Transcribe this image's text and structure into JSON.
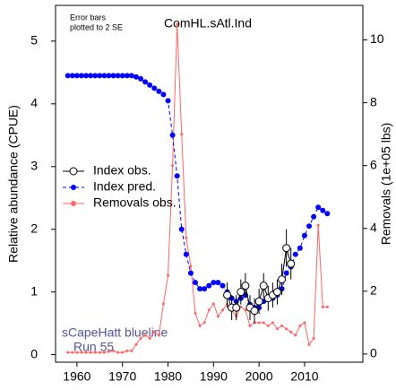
{
  "chart_data": {
    "type": "line",
    "title": "ComHL.sAtl.Ind",
    "note": [
      "Error bars",
      "plotted to 2 SE"
    ],
    "annotation": [
      "sCapeHatt blueline",
      "Run 55"
    ],
    "ylabel": "Relative abundance (CPUE)",
    "y2label": "Removals (1e+05 lbs)",
    "xlim": [
      1955.3,
      2022.8
    ],
    "xticks": [
      1960,
      1970,
      1980,
      1990,
      2000,
      2010
    ],
    "ylim": [
      -0.12,
      5.57
    ],
    "yticks": [
      0,
      1,
      2,
      3,
      4,
      5
    ],
    "y2lim": [
      -0.26,
      11.1
    ],
    "y2ticks": [
      0,
      2,
      4,
      6,
      8,
      10
    ],
    "legend": "left",
    "series": [
      {
        "name": "Index obs.",
        "color": "#000000",
        "marker": "open-circle",
        "x": [
          1993,
          1994,
          1995,
          1996,
          1997,
          1998,
          1999,
          2000,
          2001,
          2002,
          2003,
          2004,
          2005,
          2006,
          2007
        ],
        "values": [
          0.95,
          0.75,
          0.75,
          1.0,
          1.1,
          0.75,
          0.7,
          0.85,
          1.1,
          0.9,
          0.95,
          1.0,
          1.2,
          1.7,
          1.45
        ],
        "errors": [
          0.2,
          0.2,
          0.2,
          0.2,
          0.2,
          0.2,
          0.2,
          0.2,
          0.2,
          0.2,
          0.2,
          0.2,
          0.25,
          0.3,
          0.25
        ]
      },
      {
        "name": "Index pred.",
        "color": "#0000ff",
        "marker": "dot",
        "dashed": true,
        "x": [
          1958,
          1959,
          1960,
          1961,
          1962,
          1963,
          1964,
          1965,
          1966,
          1967,
          1968,
          1969,
          1970,
          1971,
          1972,
          1973,
          1974,
          1975,
          1976,
          1977,
          1978,
          1979,
          1980,
          1981,
          1982,
          1983,
          1984,
          1985,
          1986,
          1987,
          1988,
          1989,
          1990,
          1991,
          1992,
          1993,
          1994,
          1995,
          1996,
          1997,
          1998,
          1999,
          2000,
          2001,
          2002,
          2003,
          2004,
          2005,
          2006,
          2007,
          2008,
          2009,
          2010,
          2011,
          2012,
          2013,
          2014,
          2015
        ],
        "values": [
          4.45,
          4.45,
          4.45,
          4.45,
          4.45,
          4.45,
          4.45,
          4.45,
          4.45,
          4.45,
          4.45,
          4.45,
          4.45,
          4.45,
          4.45,
          4.43,
          4.4,
          4.35,
          4.3,
          4.25,
          4.2,
          4.15,
          4.05,
          3.5,
          2.85,
          2.0,
          1.6,
          1.3,
          1.15,
          1.05,
          1.05,
          1.1,
          1.15,
          1.15,
          1.1,
          1.0,
          0.9,
          0.85,
          0.9,
          0.95,
          0.8,
          0.75,
          0.75,
          0.85,
          0.9,
          0.9,
          0.95,
          1.05,
          1.3,
          1.4,
          1.6,
          1.7,
          1.9,
          2.05,
          2.2,
          2.35,
          2.3,
          2.25
        ]
      },
      {
        "name": "Removals obs.",
        "color": "#ff6666",
        "marker": "small-dot",
        "axis": "y2",
        "x": [
          1958,
          1959,
          1960,
          1961,
          1962,
          1963,
          1964,
          1965,
          1966,
          1967,
          1968,
          1969,
          1970,
          1971,
          1972,
          1973,
          1974,
          1975,
          1976,
          1977,
          1978,
          1979,
          1980,
          1981,
          1982,
          1983,
          1984,
          1985,
          1986,
          1987,
          1988,
          1989,
          1990,
          1991,
          1992,
          1993,
          1994,
          1995,
          1996,
          1997,
          1998,
          1999,
          2000,
          2001,
          2002,
          2003,
          2004,
          2005,
          2006,
          2007,
          2008,
          2009,
          2010,
          2011,
          2012,
          2013,
          2014,
          2015
        ],
        "values": [
          0.05,
          0.05,
          0.05,
          0.05,
          0.05,
          0.05,
          0.05,
          0.05,
          0.05,
          0.08,
          0.1,
          0.05,
          0.05,
          0.1,
          0.1,
          0.3,
          0.5,
          0.6,
          0.5,
          0.7,
          0.6,
          1.6,
          2.5,
          6.0,
          10.5,
          7.0,
          3.7,
          2.8,
          1.3,
          0.9,
          1.0,
          1.4,
          1.6,
          1.2,
          1.4,
          1.6,
          1.4,
          1.2,
          1.5,
          1.4,
          0.9,
          1.0,
          1.0,
          1.0,
          0.9,
          1.0,
          0.8,
          0.9,
          0.8,
          0.7,
          0.6,
          0.9,
          1.0,
          0.3,
          0.5,
          4.1,
          1.5,
          1.5
        ]
      }
    ]
  }
}
